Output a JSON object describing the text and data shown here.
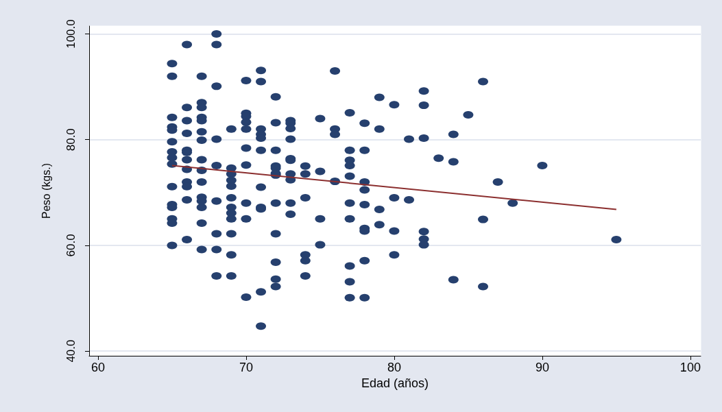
{
  "chart_data": {
    "type": "scatter",
    "xlabel": "Edad (años)",
    "ylabel": "Peso (kgs.)",
    "xlim": [
      59.4,
      100.7
    ],
    "ylim": [
      39.1,
      101.5
    ],
    "xticks": [
      60,
      70,
      80,
      90,
      100
    ],
    "yticks": [
      {
        "value": 40,
        "label": "40.0"
      },
      {
        "value": 60,
        "label": "60.0"
      },
      {
        "value": 80,
        "label": "80.0"
      },
      {
        "value": 100,
        "label": "100.0"
      }
    ],
    "grid": "y",
    "marker": "circle",
    "series": [
      {
        "color": "#26406e",
        "x": [
          65,
          65,
          65,
          65,
          65,
          65,
          65,
          65,
          65,
          65,
          65,
          65,
          65,
          65,
          65,
          66,
          66,
          66,
          66,
          66,
          66,
          66,
          66,
          66,
          66,
          66,
          66,
          67,
          67,
          67,
          67,
          67,
          67,
          67,
          67,
          67,
          67,
          67,
          67,
          67,
          67,
          67,
          68,
          68,
          68,
          68,
          68,
          68,
          68,
          68,
          68,
          69,
          69,
          69,
          69,
          69,
          69,
          69,
          69,
          69,
          69,
          69,
          69,
          70,
          70,
          70,
          70,
          70,
          70,
          70,
          70,
          70,
          70,
          71,
          71,
          71,
          71,
          71,
          71,
          71,
          71,
          71,
          71,
          71,
          72,
          72,
          72,
          72,
          72,
          72,
          72,
          72,
          72,
          72,
          72,
          72,
          73,
          73,
          73,
          73,
          73,
          73,
          73,
          73,
          73,
          73,
          74,
          74,
          74,
          74,
          74,
          74,
          75,
          75,
          75,
          75,
          76,
          76,
          76,
          76,
          77,
          77,
          77,
          77,
          77,
          77,
          77,
          77,
          77,
          77,
          78,
          78,
          78,
          78,
          78,
          78,
          78,
          78,
          78,
          79,
          79,
          79,
          79,
          80,
          80,
          80,
          80,
          81,
          81,
          82,
          82,
          82,
          82,
          82,
          82,
          83,
          84,
          84,
          84,
          85,
          86,
          86,
          86,
          87,
          88,
          90,
          95
        ],
        "values": [
          94.4,
          92,
          84.2,
          82.4,
          81.8,
          79.6,
          77.7,
          76.6,
          75.4,
          71.1,
          67.7,
          67.2,
          65,
          64.2,
          60,
          98,
          86.1,
          83.6,
          81.2,
          78,
          77.6,
          76.2,
          74.4,
          72,
          71.1,
          68.6,
          61.1,
          92,
          87,
          86.1,
          84.2,
          83.6,
          81.5,
          79.9,
          76.2,
          74.2,
          72,
          69.1,
          68.4,
          67.2,
          64.2,
          59.2,
          100,
          98,
          90.1,
          80.1,
          75.1,
          68.4,
          62.2,
          59.2,
          54.2,
          82,
          74.6,
          73.5,
          72.3,
          71.2,
          69,
          67.2,
          66.1,
          65,
          62.2,
          58.2,
          54.2,
          91.2,
          85,
          84.4,
          83.3,
          82,
          78.4,
          75.2,
          68,
          65,
          50.2,
          93.1,
          91,
          82,
          81,
          80.3,
          78,
          71,
          67.2,
          66.9,
          51.2,
          44.7,
          88.1,
          83.2,
          78,
          75,
          74.6,
          73.6,
          73.3,
          68,
          62.2,
          56.8,
          53.6,
          52.2,
          83.6,
          83.1,
          82.1,
          80.1,
          76.4,
          76.1,
          73.5,
          72.4,
          68,
          65.9,
          75,
          73.5,
          69,
          58.2,
          57.1,
          54.2,
          84,
          74,
          65,
          60.1,
          93,
          82,
          81,
          72.1,
          85.1,
          78,
          76.1,
          75.1,
          73.1,
          68,
          65,
          56.1,
          53.1,
          50.1,
          83.1,
          78,
          72,
          70.5,
          67.7,
          63.2,
          62.7,
          57.1,
          50.1,
          88,
          82,
          66.8,
          63.9,
          86.6,
          69,
          62.7,
          58.2,
          80.1,
          68.6,
          89.2,
          86.5,
          80.3,
          62.6,
          61.2,
          60.1,
          76.5,
          81,
          75.8,
          53.5,
          84.7,
          91,
          64.9,
          52.2,
          72,
          68,
          75.1,
          61.1
        ]
      },
      {
        "type": "line",
        "color": "#8b2e2e",
        "marker": "none",
        "x": [
          65,
          95
        ],
        "values": [
          75.1,
          66.8
        ]
      }
    ]
  }
}
